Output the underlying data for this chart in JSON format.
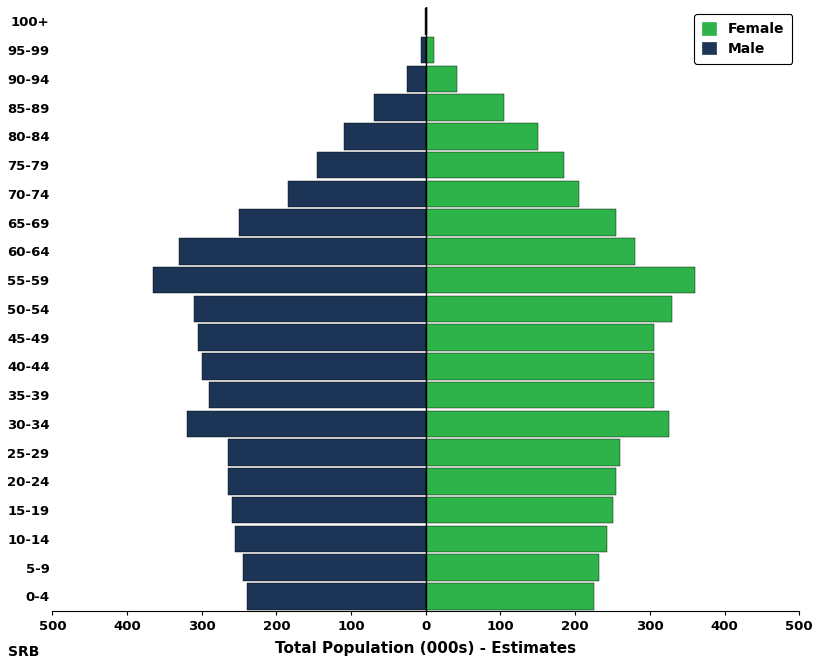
{
  "age_groups": [
    "0-4",
    "5-9",
    "10-14",
    "15-19",
    "20-24",
    "25-29",
    "30-34",
    "35-39",
    "40-44",
    "45-49",
    "50-54",
    "55-59",
    "60-64",
    "65-69",
    "70-74",
    "75-79",
    "80-84",
    "85-89",
    "90-94",
    "95-99",
    "100+"
  ],
  "male": [
    240,
    245,
    255,
    260,
    265,
    265,
    320,
    290,
    300,
    305,
    310,
    365,
    330,
    250,
    185,
    145,
    110,
    70,
    25,
    6,
    1
  ],
  "female": [
    225,
    232,
    242,
    250,
    255,
    260,
    325,
    305,
    305,
    305,
    330,
    360,
    280,
    255,
    205,
    185,
    150,
    105,
    42,
    11,
    2
  ],
  "male_color": "#1c3557",
  "female_color": "#2db34a",
  "xlabel": "Total Population (000s) - Estimates",
  "xlim": 500,
  "bar_height": 0.92,
  "legend_female": "Female",
  "legend_male": "Male",
  "vline_color": "black",
  "background_color": "none",
  "srb_label": "SRB"
}
